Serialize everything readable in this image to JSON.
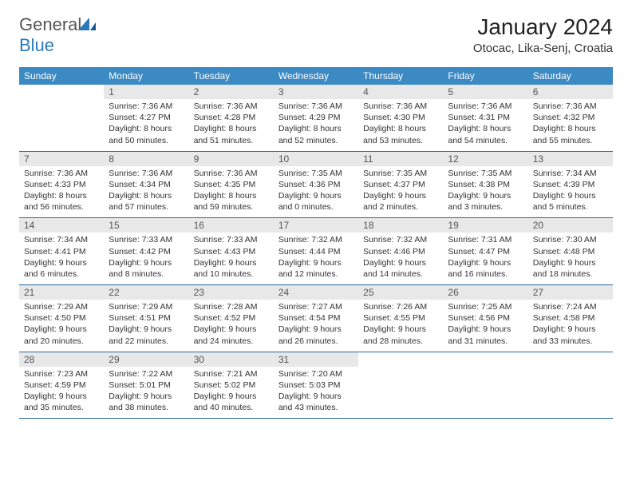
{
  "brand": {
    "part1": "General",
    "part2": "Blue"
  },
  "title": "January 2024",
  "location": "Otocac, Lika-Senj, Croatia",
  "colors": {
    "header_bg": "#3b8ac4",
    "header_text": "#ffffff",
    "daynum_bg": "#e8e8e8",
    "border": "#2a6a9e"
  },
  "day_names": [
    "Sunday",
    "Monday",
    "Tuesday",
    "Wednesday",
    "Thursday",
    "Friday",
    "Saturday"
  ],
  "weeks": [
    [
      {
        "n": "",
        "s": "",
        "t": "",
        "d": ""
      },
      {
        "n": "1",
        "s": "Sunrise: 7:36 AM",
        "t": "Sunset: 4:27 PM",
        "d": "Daylight: 8 hours and 50 minutes."
      },
      {
        "n": "2",
        "s": "Sunrise: 7:36 AM",
        "t": "Sunset: 4:28 PM",
        "d": "Daylight: 8 hours and 51 minutes."
      },
      {
        "n": "3",
        "s": "Sunrise: 7:36 AM",
        "t": "Sunset: 4:29 PM",
        "d": "Daylight: 8 hours and 52 minutes."
      },
      {
        "n": "4",
        "s": "Sunrise: 7:36 AM",
        "t": "Sunset: 4:30 PM",
        "d": "Daylight: 8 hours and 53 minutes."
      },
      {
        "n": "5",
        "s": "Sunrise: 7:36 AM",
        "t": "Sunset: 4:31 PM",
        "d": "Daylight: 8 hours and 54 minutes."
      },
      {
        "n": "6",
        "s": "Sunrise: 7:36 AM",
        "t": "Sunset: 4:32 PM",
        "d": "Daylight: 8 hours and 55 minutes."
      }
    ],
    [
      {
        "n": "7",
        "s": "Sunrise: 7:36 AM",
        "t": "Sunset: 4:33 PM",
        "d": "Daylight: 8 hours and 56 minutes."
      },
      {
        "n": "8",
        "s": "Sunrise: 7:36 AM",
        "t": "Sunset: 4:34 PM",
        "d": "Daylight: 8 hours and 57 minutes."
      },
      {
        "n": "9",
        "s": "Sunrise: 7:36 AM",
        "t": "Sunset: 4:35 PM",
        "d": "Daylight: 8 hours and 59 minutes."
      },
      {
        "n": "10",
        "s": "Sunrise: 7:35 AM",
        "t": "Sunset: 4:36 PM",
        "d": "Daylight: 9 hours and 0 minutes."
      },
      {
        "n": "11",
        "s": "Sunrise: 7:35 AM",
        "t": "Sunset: 4:37 PM",
        "d": "Daylight: 9 hours and 2 minutes."
      },
      {
        "n": "12",
        "s": "Sunrise: 7:35 AM",
        "t": "Sunset: 4:38 PM",
        "d": "Daylight: 9 hours and 3 minutes."
      },
      {
        "n": "13",
        "s": "Sunrise: 7:34 AM",
        "t": "Sunset: 4:39 PM",
        "d": "Daylight: 9 hours and 5 minutes."
      }
    ],
    [
      {
        "n": "14",
        "s": "Sunrise: 7:34 AM",
        "t": "Sunset: 4:41 PM",
        "d": "Daylight: 9 hours and 6 minutes."
      },
      {
        "n": "15",
        "s": "Sunrise: 7:33 AM",
        "t": "Sunset: 4:42 PM",
        "d": "Daylight: 9 hours and 8 minutes."
      },
      {
        "n": "16",
        "s": "Sunrise: 7:33 AM",
        "t": "Sunset: 4:43 PM",
        "d": "Daylight: 9 hours and 10 minutes."
      },
      {
        "n": "17",
        "s": "Sunrise: 7:32 AM",
        "t": "Sunset: 4:44 PM",
        "d": "Daylight: 9 hours and 12 minutes."
      },
      {
        "n": "18",
        "s": "Sunrise: 7:32 AM",
        "t": "Sunset: 4:46 PM",
        "d": "Daylight: 9 hours and 14 minutes."
      },
      {
        "n": "19",
        "s": "Sunrise: 7:31 AM",
        "t": "Sunset: 4:47 PM",
        "d": "Daylight: 9 hours and 16 minutes."
      },
      {
        "n": "20",
        "s": "Sunrise: 7:30 AM",
        "t": "Sunset: 4:48 PM",
        "d": "Daylight: 9 hours and 18 minutes."
      }
    ],
    [
      {
        "n": "21",
        "s": "Sunrise: 7:29 AM",
        "t": "Sunset: 4:50 PM",
        "d": "Daylight: 9 hours and 20 minutes."
      },
      {
        "n": "22",
        "s": "Sunrise: 7:29 AM",
        "t": "Sunset: 4:51 PM",
        "d": "Daylight: 9 hours and 22 minutes."
      },
      {
        "n": "23",
        "s": "Sunrise: 7:28 AM",
        "t": "Sunset: 4:52 PM",
        "d": "Daylight: 9 hours and 24 minutes."
      },
      {
        "n": "24",
        "s": "Sunrise: 7:27 AM",
        "t": "Sunset: 4:54 PM",
        "d": "Daylight: 9 hours and 26 minutes."
      },
      {
        "n": "25",
        "s": "Sunrise: 7:26 AM",
        "t": "Sunset: 4:55 PM",
        "d": "Daylight: 9 hours and 28 minutes."
      },
      {
        "n": "26",
        "s": "Sunrise: 7:25 AM",
        "t": "Sunset: 4:56 PM",
        "d": "Daylight: 9 hours and 31 minutes."
      },
      {
        "n": "27",
        "s": "Sunrise: 7:24 AM",
        "t": "Sunset: 4:58 PM",
        "d": "Daylight: 9 hours and 33 minutes."
      }
    ],
    [
      {
        "n": "28",
        "s": "Sunrise: 7:23 AM",
        "t": "Sunset: 4:59 PM",
        "d": "Daylight: 9 hours and 35 minutes."
      },
      {
        "n": "29",
        "s": "Sunrise: 7:22 AM",
        "t": "Sunset: 5:01 PM",
        "d": "Daylight: 9 hours and 38 minutes."
      },
      {
        "n": "30",
        "s": "Sunrise: 7:21 AM",
        "t": "Sunset: 5:02 PM",
        "d": "Daylight: 9 hours and 40 minutes."
      },
      {
        "n": "31",
        "s": "Sunrise: 7:20 AM",
        "t": "Sunset: 5:03 PM",
        "d": "Daylight: 9 hours and 43 minutes."
      },
      {
        "n": "",
        "s": "",
        "t": "",
        "d": ""
      },
      {
        "n": "",
        "s": "",
        "t": "",
        "d": ""
      },
      {
        "n": "",
        "s": "",
        "t": "",
        "d": ""
      }
    ]
  ]
}
